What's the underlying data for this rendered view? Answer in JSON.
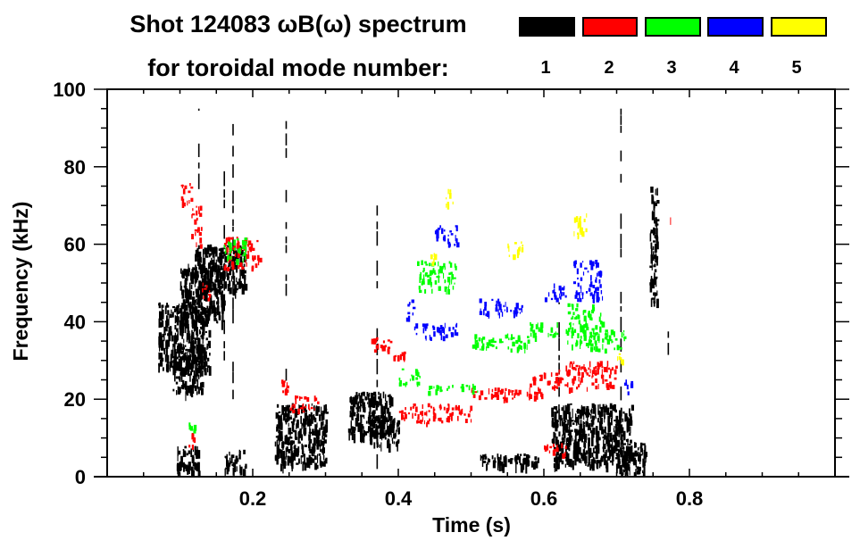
{
  "chart_data": {
    "type": "heatmap",
    "title_line1": "Shot 124083 ωB(ω) spectrum",
    "title_line2": "for toroidal mode number:",
    "xlabel": "Time (s)",
    "ylabel": "Frequency (kHz)",
    "xlim": [
      0,
      1.0
    ],
    "ylim": [
      0,
      100
    ],
    "x_ticks": [
      0.2,
      0.4,
      0.6,
      0.8
    ],
    "x_tick_labels": [
      "0.2",
      "0.4",
      "0.6",
      "0.8"
    ],
    "x_minor_step": 0.05,
    "y_ticks": [
      0,
      20,
      40,
      60,
      80,
      100
    ],
    "y_tick_labels": [
      "0",
      "20",
      "40",
      "60",
      "80",
      "100"
    ],
    "y_minor_step": 5,
    "grid": false,
    "legend": {
      "placement": "top-right",
      "entries": [
        {
          "label": "1",
          "color": "#000000"
        },
        {
          "label": "2",
          "color": "#ff0000"
        },
        {
          "label": "3",
          "color": "#00ff00"
        },
        {
          "label": "4",
          "color": "#0000ff"
        },
        {
          "label": "5",
          "color": "#ffff00"
        }
      ]
    },
    "series": [
      {
        "name": "n=1",
        "color": "#000000",
        "features": [
          {
            "t": [
              0.07,
              0.14
            ],
            "f": [
              28,
              45
            ]
          },
          {
            "t": [
              0.1,
              0.16
            ],
            "f": [
              40,
              55
            ]
          },
          {
            "t": [
              0.12,
              0.19
            ],
            "f": [
              48,
              60
            ]
          },
          {
            "t": [
              0.09,
              0.13
            ],
            "f": [
              22,
              35
            ]
          },
          {
            "t": [
              0.095,
              0.125
            ],
            "f": [
              1,
              8
            ]
          },
          {
            "t": [
              0.16,
              0.19
            ],
            "f": [
              2,
              7
            ]
          },
          {
            "t": [
              0.23,
              0.3
            ],
            "f": [
              3,
              19
            ]
          },
          {
            "t": [
              0.33,
              0.39
            ],
            "f": [
              11,
              22
            ]
          },
          {
            "t": [
              0.36,
              0.4
            ],
            "f": [
              8,
              16
            ]
          },
          {
            "t": [
              0.51,
              0.6
            ],
            "f": [
              3,
              6
            ]
          },
          {
            "t": [
              0.61,
              0.72
            ],
            "f": [
              3,
              19
            ]
          },
          {
            "t": [
              0.7,
              0.74
            ],
            "f": [
              1,
              9
            ]
          },
          {
            "t": [
              0.745,
              0.755
            ],
            "f": [
              45,
              75
            ]
          }
        ]
      },
      {
        "name": "n=2",
        "color": "#ff0000",
        "features": [
          {
            "t": [
              0.1,
              0.115
            ],
            "f": [
              70,
              76
            ]
          },
          {
            "t": [
              0.115,
              0.13
            ],
            "f": [
              60,
              70
            ]
          },
          {
            "t": [
              0.13,
              0.14
            ],
            "f": [
              46,
              52
            ]
          },
          {
            "t": [
              0.16,
              0.21
            ],
            "f": [
              54,
              62
            ]
          },
          {
            "t": [
              0.235,
              0.25
            ],
            "f": [
              22,
              26
            ]
          },
          {
            "t": [
              0.25,
              0.29
            ],
            "f": [
              17,
              21
            ]
          },
          {
            "t": [
              0.11,
              0.12
            ],
            "f": [
              8,
              12
            ]
          },
          {
            "t": [
              0.36,
              0.39
            ],
            "f": [
              32,
              36
            ]
          },
          {
            "t": [
              0.39,
              0.41
            ],
            "f": [
              30,
              33
            ]
          },
          {
            "t": [
              0.4,
              0.5
            ],
            "f": [
              14,
              19
            ]
          },
          {
            "t": [
              0.5,
              0.6
            ],
            "f": [
              20,
              23
            ]
          },
          {
            "t": [
              0.58,
              0.62
            ],
            "f": [
              23,
              27
            ]
          },
          {
            "t": [
              0.62,
              0.7
            ],
            "f": [
              23,
              30
            ]
          },
          {
            "t": [
              0.6,
              0.63
            ],
            "f": [
              6,
              9
            ]
          }
        ]
      },
      {
        "name": "n=3",
        "color": "#00ff00",
        "features": [
          {
            "t": [
              0.16,
              0.19
            ],
            "f": [
              56,
              62
            ]
          },
          {
            "t": [
              0.11,
              0.12
            ],
            "f": [
              11,
              14
            ]
          },
          {
            "t": [
              0.425,
              0.48
            ],
            "f": [
              48,
              56
            ]
          },
          {
            "t": [
              0.4,
              0.43
            ],
            "f": [
              24,
              28
            ]
          },
          {
            "t": [
              0.44,
              0.51
            ],
            "f": [
              22,
              24
            ]
          },
          {
            "t": [
              0.5,
              0.58
            ],
            "f": [
              33,
              37
            ]
          },
          {
            "t": [
              0.58,
              0.62
            ],
            "f": [
              36,
              40
            ]
          },
          {
            "t": [
              0.63,
              0.68
            ],
            "f": [
              34,
              45
            ]
          },
          {
            "t": [
              0.66,
              0.71
            ],
            "f": [
              33,
              38
            ]
          }
        ]
      },
      {
        "name": "n=4",
        "color": "#0000ff",
        "features": [
          {
            "t": [
              0.45,
              0.48
            ],
            "f": [
              60,
              65
            ]
          },
          {
            "t": [
              0.42,
              0.48
            ],
            "f": [
              36,
              40
            ]
          },
          {
            "t": [
              0.41,
              0.42
            ],
            "f": [
              41,
              46
            ]
          },
          {
            "t": [
              0.51,
              0.57
            ],
            "f": [
              42,
              46
            ]
          },
          {
            "t": [
              0.6,
              0.63
            ],
            "f": [
              46,
              50
            ]
          },
          {
            "t": [
              0.64,
              0.68
            ],
            "f": [
              46,
              56
            ]
          },
          {
            "t": [
              0.71,
              0.72
            ],
            "f": [
              22,
              26
            ]
          }
        ]
      },
      {
        "name": "n=5",
        "color": "#ffff00",
        "features": [
          {
            "t": [
              0.465,
              0.475
            ],
            "f": [
              70,
              75
            ]
          },
          {
            "t": [
              0.44,
              0.45
            ],
            "f": [
              55,
              58
            ]
          },
          {
            "t": [
              0.55,
              0.57
            ],
            "f": [
              57,
              61
            ]
          },
          {
            "t": [
              0.64,
              0.66
            ],
            "f": [
              62,
              68
            ]
          },
          {
            "t": [
              0.7,
              0.71
            ],
            "f": [
              30,
              32
            ]
          }
        ]
      }
    ],
    "vertical_streaks": [
      {
        "t": 0.125,
        "f": [
          70,
          95
        ],
        "color": "#000000"
      },
      {
        "t": 0.16,
        "f": [
          30,
          86
        ],
        "color": "#000000"
      },
      {
        "t": 0.172,
        "f": [
          20,
          92
        ],
        "color": "#000000"
      },
      {
        "t": 0.245,
        "f": [
          5,
          97
        ],
        "color": "#000000"
      },
      {
        "t": 0.37,
        "f": [
          2,
          70
        ],
        "color": "#000000"
      },
      {
        "t": 0.62,
        "f": [
          2,
          45
        ],
        "color": "#000000"
      },
      {
        "t": 0.705,
        "f": [
          5,
          95
        ],
        "color": "#000000"
      },
      {
        "t": 0.77,
        "f": [
          30,
          38
        ],
        "color": "#000000"
      },
      {
        "t": 0.773,
        "f": [
          65,
          74
        ],
        "color": "#ff6666"
      }
    ]
  }
}
